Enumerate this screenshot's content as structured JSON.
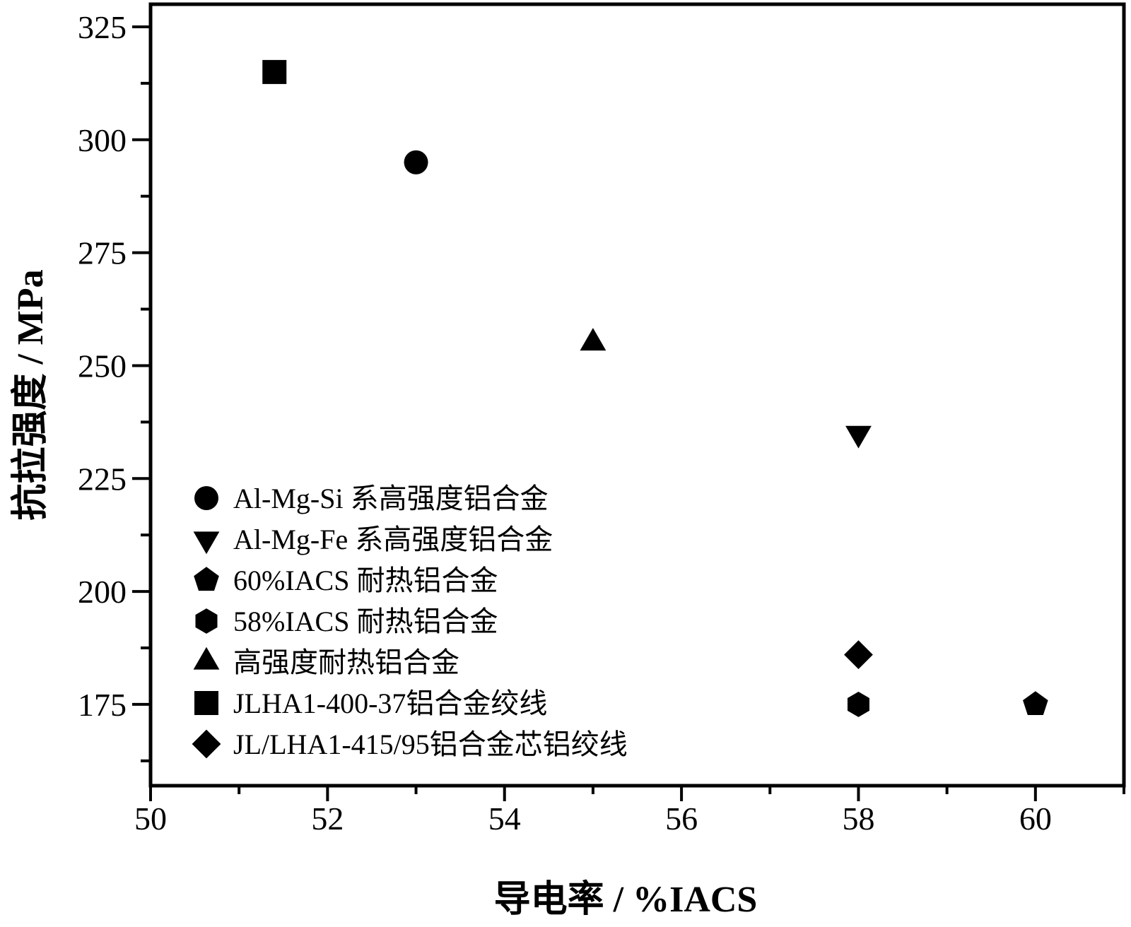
{
  "chart_data": {
    "type": "scatter",
    "title": "",
    "xlabel": "导电率 / %IACS",
    "ylabel": "抗拉强度 / MPa",
    "xlim": [
      50,
      61
    ],
    "ylim": [
      157,
      330
    ],
    "xticks": [
      50,
      52,
      54,
      56,
      58,
      60
    ],
    "yticks": [
      175,
      200,
      225,
      250,
      275,
      300,
      325
    ],
    "grid": false,
    "legend_position": "bottom-left",
    "series": [
      {
        "name": "Al-Mg-Si 系高强度铝合金",
        "marker": "circle",
        "points": [
          [
            53,
            295
          ]
        ]
      },
      {
        "name": "Al-Mg-Fe 系高强度铝合金",
        "marker": "triangle-down",
        "points": [
          [
            58,
            235
          ]
        ]
      },
      {
        "name": "60%IACS 耐热铝合金",
        "marker": "pentagon",
        "points": [
          [
            60,
            175
          ]
        ]
      },
      {
        "name": "58%IACS 耐热铝合金",
        "marker": "hexagon",
        "points": [
          [
            58,
            175
          ]
        ]
      },
      {
        "name": "高强度耐热铝合金",
        "marker": "triangle-up",
        "points": [
          [
            55,
            255
          ]
        ]
      },
      {
        "name": "JLHA1-400-37铝合金绞线",
        "marker": "square",
        "points": [
          [
            51.4,
            315
          ]
        ]
      },
      {
        "name": "JL/LHA1-415/95铝合金芯铝绞线",
        "marker": "diamond",
        "points": [
          [
            58,
            186
          ]
        ]
      }
    ]
  }
}
